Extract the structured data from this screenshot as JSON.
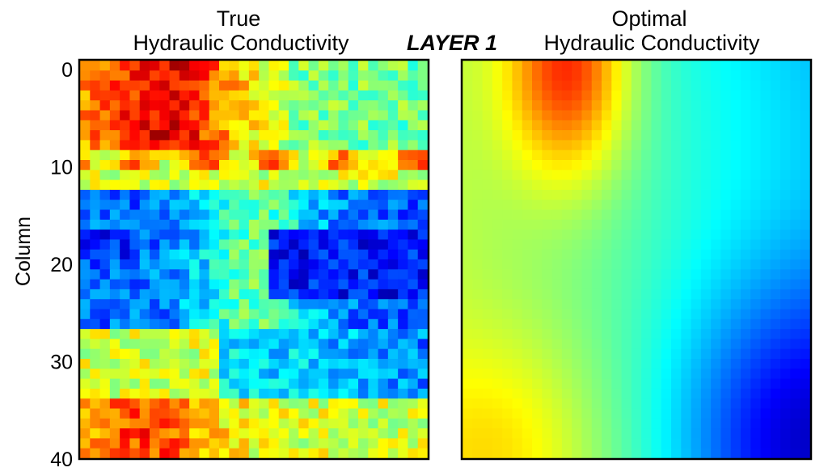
{
  "figure": {
    "center_label": "LAYER 1",
    "ylabel": "Column",
    "colormap": "jet"
  },
  "chart_data": [
    {
      "type": "heatmap",
      "title_line1": "True",
      "title_line2": "Hydraulic Conductivity",
      "ylabel": "Column",
      "ylim": [
        0,
        40
      ],
      "yticks": [
        "0",
        "10",
        "20",
        "30",
        "40"
      ],
      "grid": {
        "rows": 40,
        "cols": 35
      },
      "value_range": [
        0,
        1
      ],
      "smooth": false,
      "colormap": "jet"
    },
    {
      "type": "heatmap",
      "title_line1": "Optimal",
      "title_line2": "Hydraulic Conductivity",
      "ylim": [
        0,
        40
      ],
      "grid": {
        "rows": 40,
        "cols": 35
      },
      "value_range": [
        0,
        1
      ],
      "smooth": true,
      "colormap": "jet"
    }
  ]
}
